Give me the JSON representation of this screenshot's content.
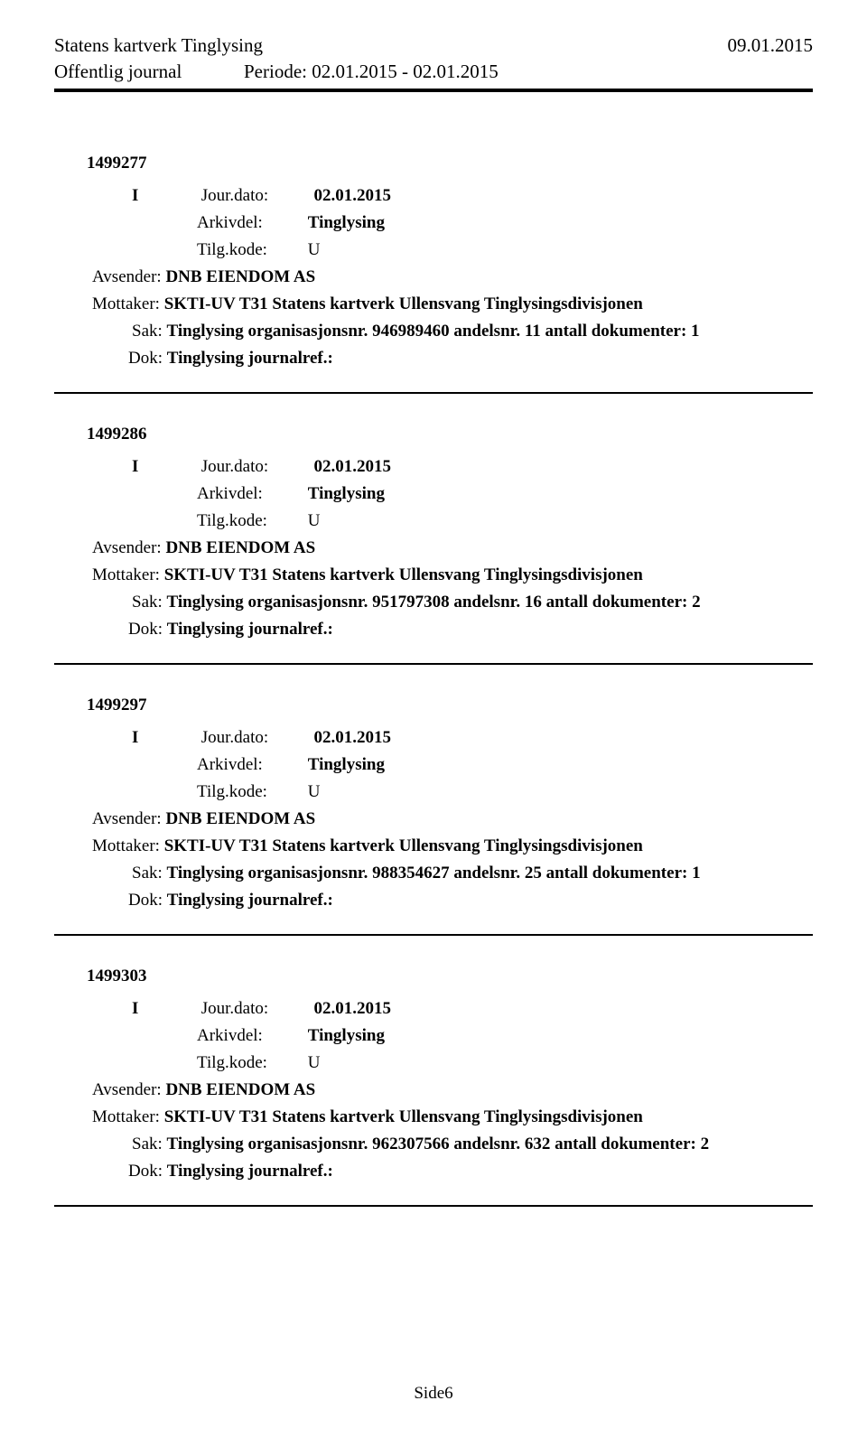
{
  "header": {
    "org": "Statens kartverk Tinglysing",
    "date_right": "09.01.2015",
    "subtitle": "Offentlig journal",
    "period": "Periode: 02.01.2015 - 02.01.2015"
  },
  "labels": {
    "jour": "Jour.dato:",
    "arkivdel": "Arkivdel:",
    "tilgkode": "Tilg.kode:",
    "avsender": "Avsender:",
    "mottaker": "Mottaker:",
    "sak": "Sak:",
    "dok": "Dok:"
  },
  "entries": [
    {
      "id": "1499277",
      "dir": "I",
      "jourdato": "02.01.2015",
      "arkivdel": "Tinglysing",
      "tilgkode": "U",
      "avsender": "DNB EIENDOM AS",
      "mottaker": "SKTI-UV T31 Statens kartverk Ullensvang Tinglysingsdivisjonen",
      "sak": "Tinglysing organisasjonsnr. 946989460 andelsnr. 11 antall dokumenter: 1",
      "dok": "Tinglysing journalref.:"
    },
    {
      "id": "1499286",
      "dir": "I",
      "jourdato": "02.01.2015",
      "arkivdel": "Tinglysing",
      "tilgkode": "U",
      "avsender": "DNB EIENDOM AS",
      "mottaker": "SKTI-UV T31 Statens kartverk Ullensvang Tinglysingsdivisjonen",
      "sak": "Tinglysing organisasjonsnr. 951797308 andelsnr. 16 antall dokumenter: 2",
      "dok": "Tinglysing journalref.:"
    },
    {
      "id": "1499297",
      "dir": "I",
      "jourdato": "02.01.2015",
      "arkivdel": "Tinglysing",
      "tilgkode": "U",
      "avsender": "DNB EIENDOM AS",
      "mottaker": "SKTI-UV T31 Statens kartverk Ullensvang Tinglysingsdivisjonen",
      "sak": "Tinglysing organisasjonsnr. 988354627 andelsnr. 25 antall dokumenter: 1",
      "dok": "Tinglysing journalref.:"
    },
    {
      "id": "1499303",
      "dir": "I",
      "jourdato": "02.01.2015",
      "arkivdel": "Tinglysing",
      "tilgkode": "U",
      "avsender": "DNB EIENDOM AS",
      "mottaker": "SKTI-UV T31 Statens kartverk Ullensvang Tinglysingsdivisjonen",
      "sak": "Tinglysing organisasjonsnr. 962307566 andelsnr. 632 antall dokumenter: 2",
      "dok": "Tinglysing journalref.:"
    }
  ],
  "page_number": "Side6"
}
